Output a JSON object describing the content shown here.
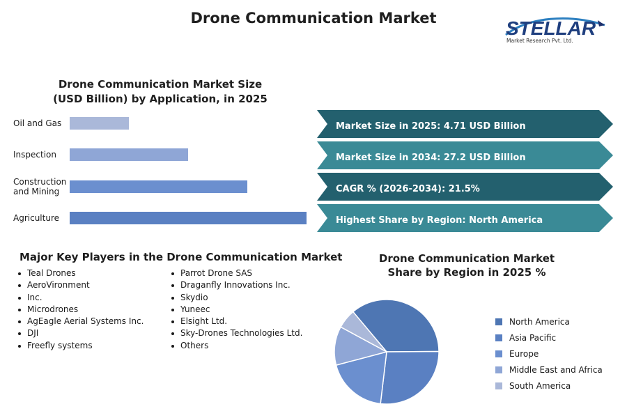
{
  "header": {
    "title": "Drone Communication Market"
  },
  "logo": {
    "brand": "STELLAR",
    "subtitle": "Market Research Pvt. Ltd."
  },
  "stats": [
    {
      "label": "Market Size in 2025: 4.71 USD Billion",
      "color": "#23606e"
    },
    {
      "label": "Market Size in 2034: 27.2 USD Billion",
      "color": "#3a8a96"
    },
    {
      "label": "CAGR % (2026-2034): 21.5%",
      "color": "#23606e"
    },
    {
      "label": "Highest Share by Region: North America",
      "color": "#3a8a96"
    }
  ],
  "key_players": {
    "title": "Major Key Players in the Drone Communication Market",
    "column1": [
      "Teal Drones",
      "AeroVironment",
      "Inc.",
      "Microdrones",
      "AgEagle Aerial Systems Inc.",
      "DJI",
      "Freefly systems"
    ],
    "column2": [
      "Parrot Drone SAS",
      "Draganfly Innovations Inc.",
      "Skydio",
      "Yuneec",
      "Elsight Ltd.",
      "Sky-Drones Technologies Ltd.",
      "Others"
    ]
  },
  "chart_data": [
    {
      "type": "bar",
      "orientation": "horizontal",
      "title": [
        "Drone Communication Market Size",
        "(USD Billion) by Application, in 2025"
      ],
      "categories": [
        [
          "Oil and Gas"
        ],
        [
          "Inspection"
        ],
        [
          "Construction",
          "and Mining"
        ],
        [
          "Agriculture"
        ]
      ],
      "values": [
        0.25,
        0.5,
        0.75,
        1.0
      ],
      "colors": [
        "#aab8d9",
        "#8fa6d6",
        "#6b8fcf",
        "#5a80c2"
      ],
      "xlim": [
        0,
        1.0
      ],
      "grid": false,
      "legend": "none"
    },
    {
      "type": "pie",
      "title": [
        "Drone Communication Market",
        "Share by Region in 2025 %"
      ],
      "labels": [
        "North America",
        "Asia Pacific",
        "Europe",
        "Middle East and Africa",
        "South America"
      ],
      "values": [
        36,
        27,
        19,
        12,
        6
      ],
      "colors": [
        "#4e76b3",
        "#5a80c2",
        "#6b8fcf",
        "#8fa6d6",
        "#aab8d9"
      ],
      "legend": "right"
    }
  ]
}
